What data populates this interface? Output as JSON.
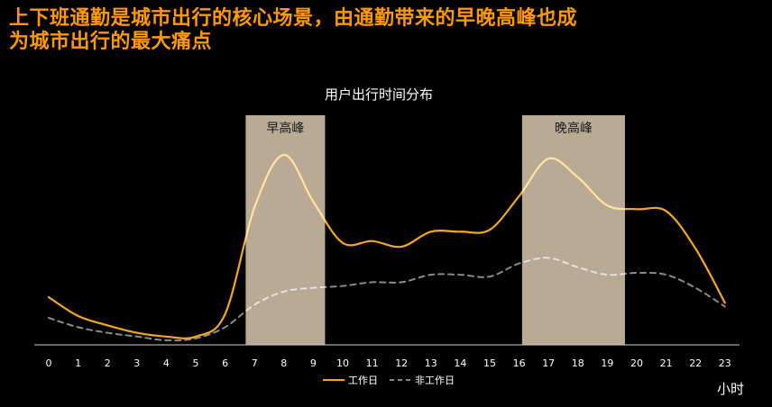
{
  "headline": {
    "line1": "上下班通勤是城市出行的核心场景，由通勤带来的早晚高峰也成",
    "line2": "为城市出行的最大痛点"
  },
  "colors": {
    "background": "#000000",
    "headline": "#ff9900",
    "workday": "#f5a623",
    "workday_in_band": "#ffe2a8",
    "nonworkday": "#8a8a8a",
    "nonworkday_in_band": "#e8e3dc",
    "band": "#b9aa95",
    "axis": "#cfcfcf",
    "text": "#ffffff"
  },
  "chart_data": {
    "type": "line",
    "title": "用户出行时间分布",
    "xlabel": "小时",
    "ylabel": "",
    "grid": false,
    "categories": [
      "0",
      "1",
      "2",
      "3",
      "4",
      "5",
      "6",
      "7",
      "8",
      "9",
      "10",
      "11",
      "12",
      "13",
      "14",
      "15",
      "16",
      "17",
      "18",
      "19",
      "20",
      "21",
      "22",
      "23"
    ],
    "x": [
      0,
      1,
      2,
      3,
      4,
      5,
      6,
      7,
      8,
      9,
      10,
      11,
      12,
      13,
      14,
      15,
      16,
      17,
      18,
      19,
      20,
      21,
      22,
      23
    ],
    "ylim": [
      0,
      100
    ],
    "series": [
      {
        "name": "工作日",
        "style": "solid",
        "values": [
          24,
          14,
          9,
          5,
          3,
          3,
          15,
          72,
          100,
          75,
          53,
          54,
          51,
          59,
          59,
          60,
          78,
          98,
          88,
          73,
          71,
          70,
          50,
          21
        ]
      },
      {
        "name": "非工作日",
        "style": "dashed",
        "values": [
          13,
          8,
          5,
          3,
          1,
          2,
          8,
          20,
          27,
          29,
          30,
          32,
          32,
          36,
          36,
          35,
          42,
          45,
          40,
          36,
          37,
          36,
          29,
          19
        ]
      }
    ],
    "bands": [
      {
        "label": "早高峰",
        "from": 6.7,
        "to": 9.4
      },
      {
        "label": "晚高峰",
        "from": 16.1,
        "to": 19.6
      }
    ],
    "legend_position": "bottom-center"
  }
}
